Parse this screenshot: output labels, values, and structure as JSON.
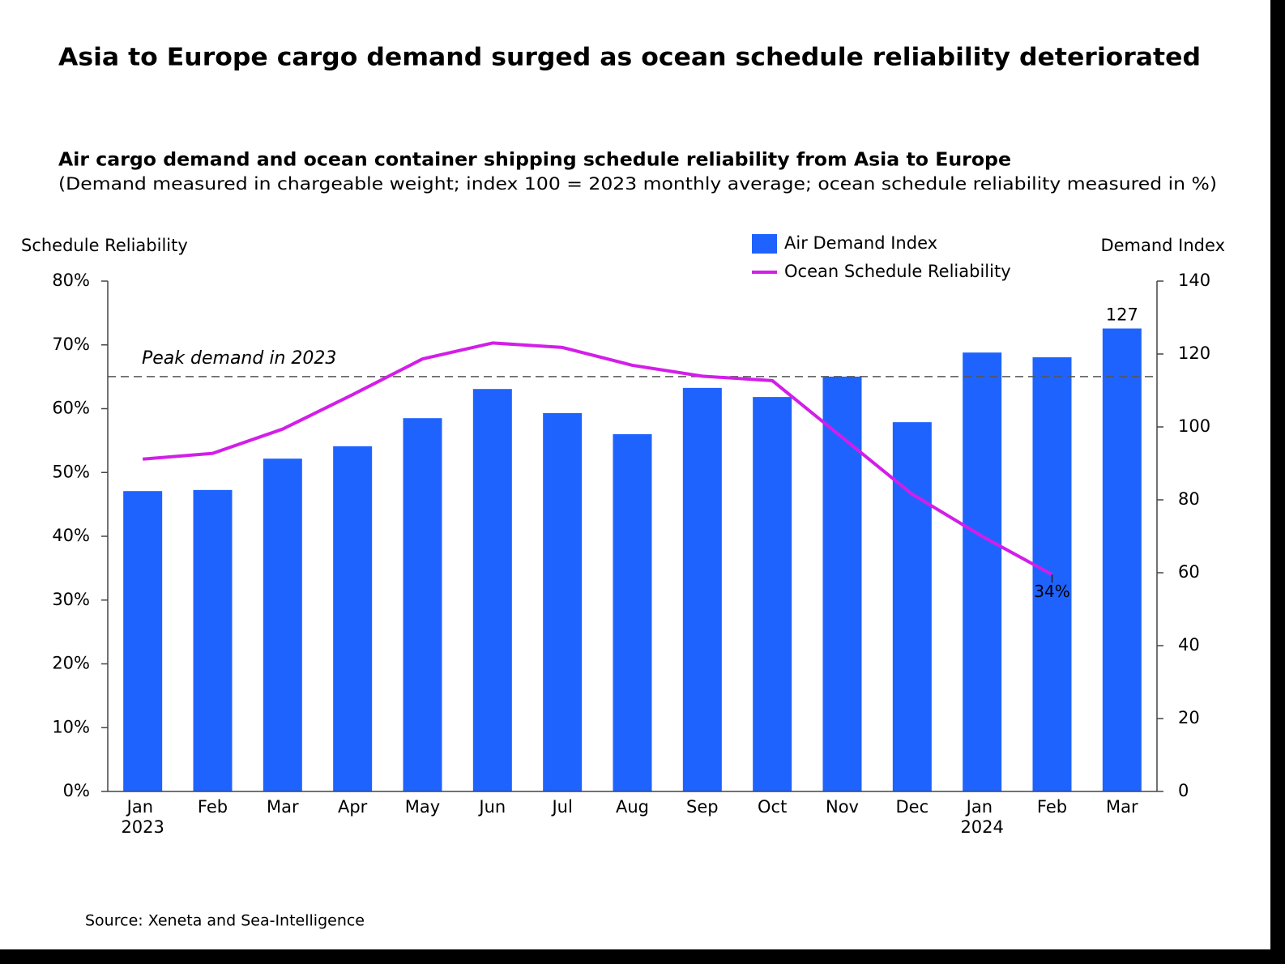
{
  "chart_data": {
    "type": "bar_line",
    "title": "Asia to Europe cargo demand surged as ocean schedule reliability deteriorated",
    "subtitle": "Air cargo demand and ocean container shipping schedule reliability from Asia to Europe",
    "note": "(Demand measured in chargeable weight; index 100 = 2023 monthly average; ocean schedule reliability measured in %)",
    "y_label": "Schedule Reliability",
    "y2_label": "Demand Index",
    "source": "Source: Xeneta and Sea-Intelligence",
    "categories": [
      "Jan 2023",
      "Feb",
      "Mar",
      "Apr",
      "May",
      "Jun",
      "Jul",
      "Aug",
      "Sep",
      "Oct",
      "Nov",
      "Dec",
      "Jan 2024",
      "Feb",
      "Mar"
    ],
    "series": [
      {
        "name": "Air Demand Index",
        "type": "bar",
        "axis": "y2",
        "color": "#1f63ff",
        "values": [
          82.4,
          82.7,
          91.3,
          94.7,
          102.4,
          110.4,
          103.8,
          98.0,
          110.7,
          108.2,
          113.8,
          101.3,
          120.4,
          119.1,
          127
        ],
        "value_labels": [
          null,
          null,
          null,
          null,
          null,
          null,
          null,
          null,
          null,
          null,
          null,
          null,
          null,
          null,
          "127"
        ]
      },
      {
        "name": "Ocean Schedule Reliability",
        "type": "line",
        "axis": "y",
        "color": "#d21ee8",
        "values": [
          52.1,
          53.0,
          56.8,
          62.2,
          67.8,
          70.3,
          69.6,
          66.8,
          65.1,
          64.4,
          55.5,
          46.6,
          40.0,
          34,
          null
        ],
        "value_labels": [
          null,
          null,
          null,
          null,
          null,
          null,
          null,
          null,
          null,
          null,
          null,
          null,
          null,
          "34%",
          null
        ]
      }
    ],
    "reference_line": {
      "value": 113.8,
      "axis": "y2",
      "label": "Peak demand in 2023"
    },
    "ylim": [
      0,
      80
    ],
    "yticks": [
      {
        "value": 0,
        "label": "0%"
      },
      {
        "value": 10,
        "label": "10%"
      },
      {
        "value": 20,
        "label": "20%"
      },
      {
        "value": 30,
        "label": "30%"
      },
      {
        "value": 40,
        "label": "40%"
      },
      {
        "value": 50,
        "label": "50%"
      },
      {
        "value": 60,
        "label": "60%"
      },
      {
        "value": 70,
        "label": "70%"
      },
      {
        "value": 80,
        "label": "80%"
      }
    ],
    "y2lim": [
      0,
      140
    ],
    "y2ticks": [
      0,
      20,
      40,
      60,
      80,
      100,
      120,
      140
    ],
    "y_color": "#d61fe0",
    "y2_color": "#2f7bf5",
    "legend": "top-right"
  }
}
